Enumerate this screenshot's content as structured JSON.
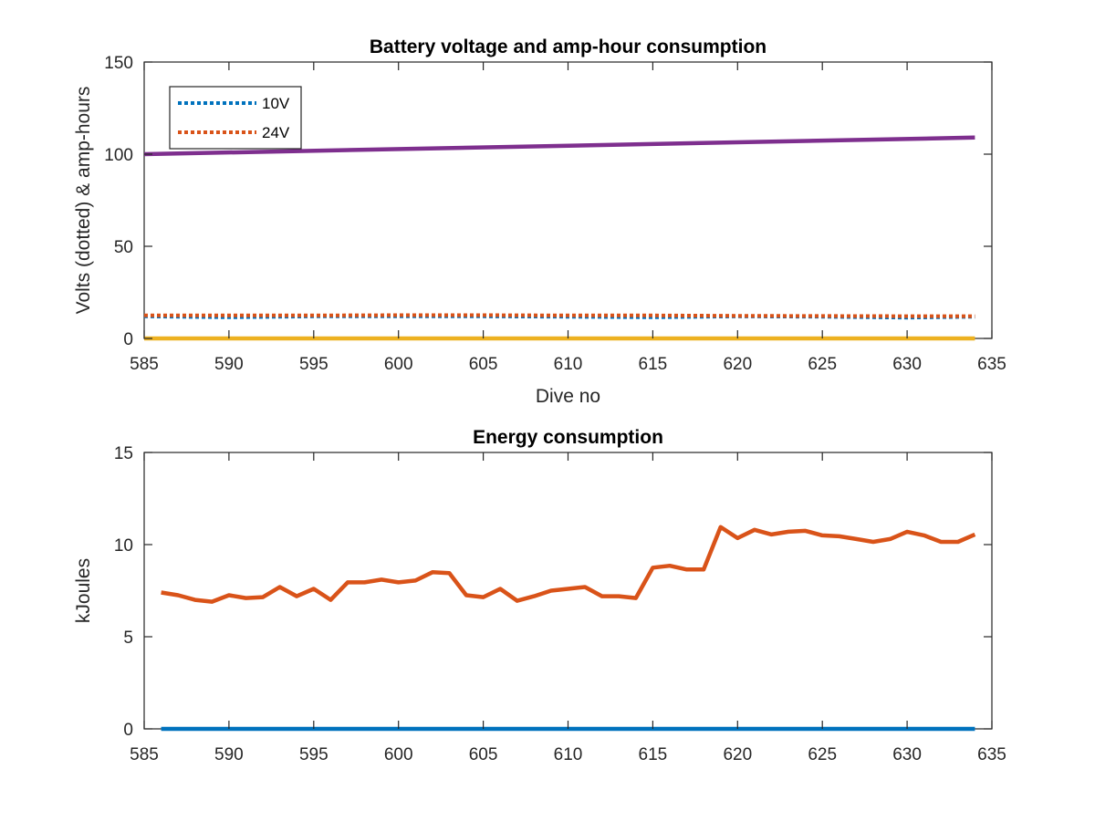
{
  "chart_data": [
    {
      "type": "line",
      "title": "Battery voltage and amp-hour consumption",
      "xlabel": "Dive no",
      "ylabel": "Volts (dotted) & amp-hours",
      "xlim": [
        585,
        635
      ],
      "ylim": [
        0,
        150
      ],
      "xticks": [
        585,
        590,
        595,
        600,
        605,
        610,
        615,
        620,
        625,
        630,
        635
      ],
      "yticks": [
        0,
        50,
        100,
        150
      ],
      "grid": false,
      "legend_position": "top-left",
      "series": [
        {
          "name": "10V",
          "style": "dotted",
          "color": "#0072bd",
          "in_legend": true,
          "x": [
            585,
            590,
            595,
            600,
            605,
            610,
            615,
            620,
            625,
            630,
            634
          ],
          "y": [
            12,
            11.5,
            12,
            12,
            12,
            11.8,
            11.5,
            12,
            11.8,
            11.3,
            11.8
          ]
        },
        {
          "name": "24V",
          "style": "dotted",
          "color": "#d95319",
          "in_legend": true,
          "x": [
            585,
            590,
            595,
            600,
            605,
            610,
            615,
            620,
            625,
            630,
            634
          ],
          "y": [
            12.5,
            12.5,
            12.5,
            12.6,
            12.6,
            12.5,
            12.5,
            12.3,
            12.2,
            12.1,
            12.1
          ]
        },
        {
          "name": "",
          "style": "solid",
          "color": "#edb120",
          "in_legend": false,
          "x": [
            585,
            634
          ],
          "y": [
            0,
            0
          ]
        },
        {
          "name": "",
          "style": "solid",
          "color": "#7e2f8e",
          "in_legend": false,
          "x": [
            585,
            634
          ],
          "y": [
            100,
            109
          ]
        }
      ]
    },
    {
      "type": "line",
      "title": "Energy consumption",
      "xlabel": "",
      "ylabel": "kJoules",
      "xlim": [
        585,
        635
      ],
      "ylim": [
        0,
        15
      ],
      "xticks": [
        585,
        590,
        595,
        600,
        605,
        610,
        615,
        620,
        625,
        630,
        635
      ],
      "yticks": [
        0,
        5,
        10,
        15
      ],
      "grid": false,
      "series": [
        {
          "name": "",
          "style": "solid",
          "color": "#0072bd",
          "in_legend": false,
          "x": [
            586,
            634
          ],
          "y": [
            0,
            0
          ]
        },
        {
          "name": "",
          "style": "solid",
          "color": "#d95319",
          "in_legend": false,
          "x": [
            586,
            587,
            588,
            589,
            590,
            591,
            592,
            593,
            594,
            595,
            596,
            597,
            598,
            599,
            600,
            601,
            602,
            603,
            604,
            605,
            606,
            607,
            608,
            609,
            610,
            611,
            612,
            613,
            614,
            615,
            616,
            617,
            618,
            619,
            620,
            621,
            622,
            623,
            624,
            625,
            626,
            627,
            628,
            629,
            630,
            631,
            632,
            633,
            634
          ],
          "y": [
            7.4,
            7.25,
            7.0,
            6.9,
            7.25,
            7.1,
            7.15,
            7.7,
            7.2,
            7.6,
            7.0,
            7.95,
            7.95,
            8.1,
            7.95,
            8.05,
            8.5,
            8.45,
            7.25,
            7.15,
            7.6,
            6.95,
            7.2,
            7.5,
            7.6,
            7.7,
            7.2,
            7.2,
            7.1,
            8.75,
            8.85,
            8.65,
            8.65,
            10.95,
            10.35,
            10.8,
            10.55,
            10.7,
            10.75,
            10.5,
            10.45,
            10.3,
            10.15,
            10.3,
            10.7,
            10.5,
            10.15,
            10.15,
            10.55
          ]
        }
      ]
    }
  ]
}
